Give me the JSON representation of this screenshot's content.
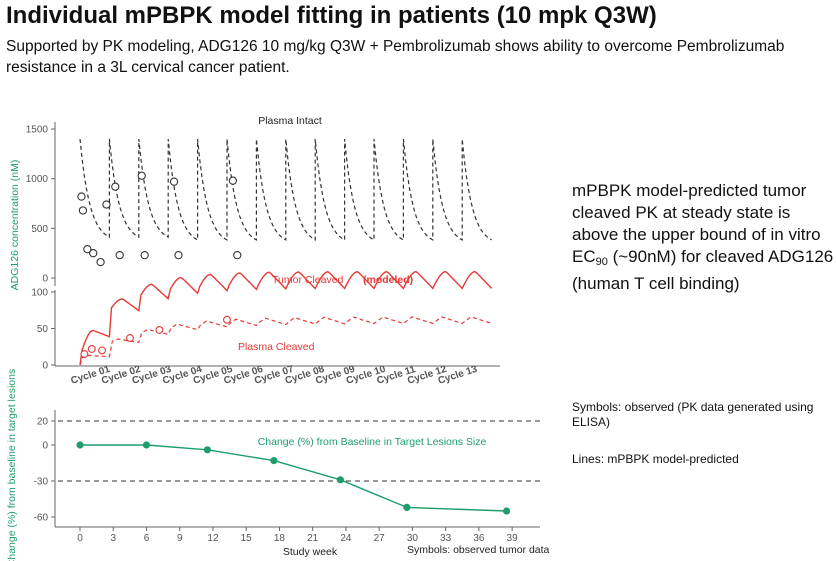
{
  "header": {
    "title": "Individual mPBPK model fitting in patients (10 mpk Q3W)",
    "subtitle": "Supported by PK modeling, ADG126 10 mg/kg Q3W + Pembrolizumab shows ability to overcome Pembrolizumab resistance in a 3L cervical cancer patient."
  },
  "sidebar": {
    "main_text_prefix": "mPBPK model-predicted tumor cleaved PK at steady state is above the upper bound of in vitro EC",
    "main_text_sub": "90",
    "main_text_suffix": " (~90nM) for cleaved ADG126 (human T cell binding)",
    "note1": "Symbols: observed (PK data generated using ELISA)",
    "note2": "Lines: mPBPK model-predicted"
  },
  "colors": {
    "plasma": "#333333",
    "cleaved": "#e53935",
    "tumor_change": "#1f9e6b",
    "axis": "#666666"
  },
  "chart_data": [
    {
      "type": "line",
      "title": "Plasma Intact",
      "ylabel": "ADG126 concentration (nM)",
      "ylim": [
        0,
        1500
      ],
      "yticks": [
        0,
        500,
        1000,
        1500
      ],
      "dose_cycles": 14,
      "series": [
        {
          "name": "Plasma Intact (model)",
          "style": "dashed",
          "peak": 1400,
          "trough_start": 500,
          "trough_ss": 330
        },
        {
          "name": "Plasma Intact (observed)",
          "style": "open-circle",
          "x": [
            0.05,
            0.1,
            0.25,
            0.45,
            0.7,
            0.9,
            1.2,
            1.35,
            2.1,
            2.2,
            3.2,
            3.35,
            5.2,
            5.35
          ],
          "y": [
            820,
            680,
            290,
            250,
            160,
            740,
            920,
            230,
            1030,
            230,
            970,
            230,
            980,
            230
          ]
        }
      ]
    },
    {
      "type": "line",
      "ylim": [
        0,
        150
      ],
      "yticks": [
        0,
        50,
        100
      ],
      "annotations": [
        "Tumor Cleaved",
        "(modeled)",
        "Plasma Cleaved"
      ],
      "xcategories": [
        "Cycle 01",
        "Cycle 02",
        "Cycle 03",
        "Cycle 04",
        "Cycle 05",
        "Cycle 06",
        "Cycle 07",
        "Cycle 08",
        "Cycle 09",
        "Cycle 10",
        "Cycle 11",
        "Cycle 12",
        "Cycle 13"
      ],
      "series": [
        {
          "name": "Tumor Cleaved (model)",
          "style": "solid",
          "steady_peak": 128,
          "steady_trough": 105
        },
        {
          "name": "Plasma Cleaved (model)",
          "style": "dashed",
          "steady_peak": 66,
          "steady_trough": 57
        },
        {
          "name": "Plasma Cleaved (observed)",
          "style": "open-circle",
          "x": [
            0.15,
            0.4,
            0.75,
            1.7,
            2.7,
            5.0
          ],
          "y": [
            15,
            22,
            20,
            37,
            48,
            62
          ]
        }
      ]
    },
    {
      "type": "line",
      "title": "Change (%) from Baseline in Target Lesions Size",
      "xlabel": "Study week",
      "ylabel": "Change (%) from baseline in target lesions",
      "xticks": [
        0,
        3,
        6,
        9,
        12,
        15,
        18,
        21,
        24,
        27,
        30,
        33,
        36,
        39
      ],
      "yticks": [
        20,
        0,
        -30,
        -60
      ],
      "reference_lines": [
        20,
        -30
      ],
      "note": "Symbols: observed tumor data",
      "series": [
        {
          "name": "Target lesion change",
          "x": [
            0,
            6,
            11.5,
            17.5,
            23.5,
            29.5,
            38.5
          ],
          "y": [
            0,
            0,
            -4,
            -13,
            -29,
            -52,
            -55
          ]
        }
      ]
    }
  ]
}
